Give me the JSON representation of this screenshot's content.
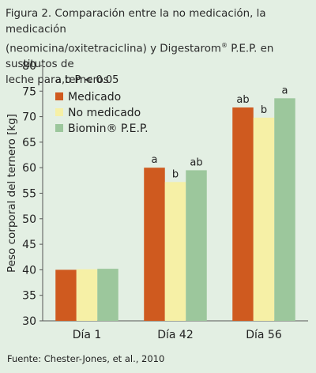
{
  "caption": {
    "line1": "Figura 2. Comparación entre la no medicación, la medicación",
    "line2_pre": "(neomicina/oxitetraciclina) y Digestarom",
    "line2_sup": "®",
    "line2_post": " P.E.P. en sustitutos de",
    "line3": "leche para terneros"
  },
  "source": "Fuente: Chester-Jones, et al., 2010",
  "chart_data": {
    "type": "bar",
    "ylabel": "Peso corporal del ternero [kg]",
    "ylim": [
      30,
      80
    ],
    "yticks": [
      30,
      35,
      40,
      45,
      50,
      55,
      60,
      65,
      70,
      75,
      80
    ],
    "grid": false,
    "categories": [
      "Día 1",
      "Día 42",
      "Día 56"
    ],
    "significance_note": "a,b P < 0.05",
    "legend_position": "top-left",
    "series": [
      {
        "name": "Medicado",
        "color": "#cf5a1f",
        "values": [
          40.0,
          60.0,
          71.8
        ],
        "labels": [
          "",
          "a",
          "ab"
        ]
      },
      {
        "name": "No medicado",
        "color": "#f6f0a6",
        "values": [
          40.1,
          57.2,
          69.8
        ],
        "labels": [
          "",
          "b",
          "b"
        ]
      },
      {
        "name": "Biomin® P.E.P.",
        "color": "#9cc79c",
        "values": [
          40.2,
          59.5,
          73.6
        ],
        "labels": [
          "",
          "ab",
          "a"
        ]
      }
    ]
  }
}
